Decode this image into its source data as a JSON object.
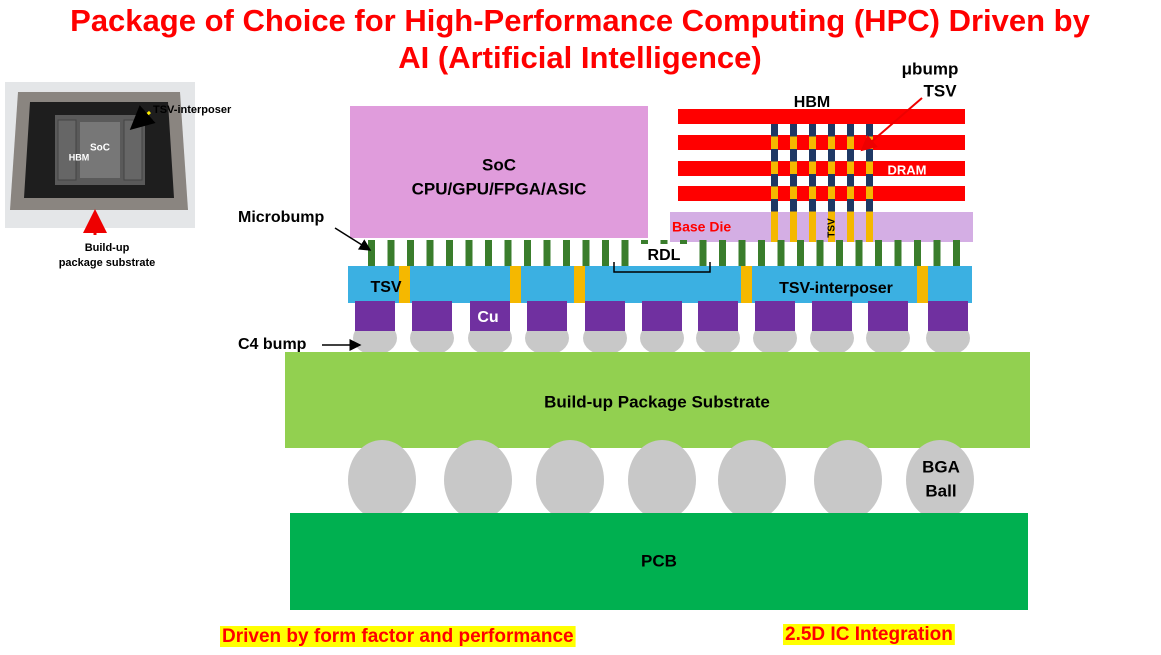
{
  "title": {
    "lines": [
      "Package of Choice for High-Performance Computing (HPC) Driven by",
      "AI (Artificial Intelligence)"
    ]
  },
  "photo": {
    "tsv_interposer": "TSV-interposer",
    "soc": "SoC",
    "hbm": "HBM",
    "substrate": [
      "Build-up",
      "package substrate"
    ]
  },
  "diagram": {
    "soc": [
      "SoC",
      "CPU/GPU/FPGA/ASIC"
    ],
    "hbm": "HBM",
    "ubump": "μbump",
    "hbm_tsv": "TSV",
    "dram": "DRAM",
    "base_die": "Base Die",
    "base_tsv": "TSV",
    "microbump": "Microbump",
    "rdl": "RDL",
    "tsv": "TSV",
    "interposer": "TSV-interposer",
    "cu": "Cu",
    "c4_bump": "C4 bump",
    "substrate": "Build-up Package Substrate",
    "bga": [
      "BGA",
      "Ball"
    ],
    "pcb": "PCB"
  },
  "footer": {
    "left": "Driven by form factor and performance",
    "right": "2.5D IC Integration"
  }
}
